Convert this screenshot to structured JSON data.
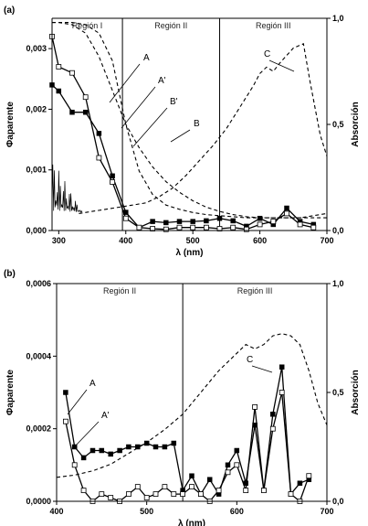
{
  "chart_data": [
    {
      "panel": "(a)",
      "type": "line",
      "xlabel": "λ (nm)",
      "ylabel_left": "Φaparente",
      "ylabel_right": "Absorción",
      "xlim": [
        290,
        700
      ],
      "ylim_left": [
        0,
        0.0035
      ],
      "ylim_right": [
        0,
        1.0
      ],
      "xticks": [
        {
          "v": 300,
          "label": "300"
        },
        {
          "v": 400,
          "label": "400"
        },
        {
          "v": 500,
          "label": "500"
        },
        {
          "v": 600,
          "label": "600"
        },
        {
          "v": 700,
          "label": "700"
        }
      ],
      "yticks_left": [
        {
          "v": 0,
          "label": "0,000"
        },
        {
          "v": 0.001,
          "label": "0,001"
        },
        {
          "v": 0.002,
          "label": "0,002"
        },
        {
          "v": 0.003,
          "label": "0,003"
        }
      ],
      "yticks_right": [
        {
          "v": 0,
          "label": "0,0"
        },
        {
          "v": 0.5,
          "label": "0,5"
        },
        {
          "v": 1.0,
          "label": "1,0"
        }
      ],
      "regions": [
        {
          "label": "Región I",
          "from": 290,
          "to": 395
        },
        {
          "label": "Región II",
          "from": 395,
          "to": 540
        },
        {
          "label": "Región III",
          "from": 540,
          "to": 700
        }
      ],
      "series": [
        {
          "name": "A",
          "axis": "left",
          "marker": "filled-square",
          "style": "solid",
          "x": [
            290,
            300,
            320,
            340,
            360,
            380,
            400,
            420,
            440,
            460,
            480,
            500,
            520,
            540,
            560,
            580,
            600,
            620,
            640,
            660,
            680
          ],
          "y": [
            0.0024,
            0.0023,
            0.00195,
            0.00195,
            0.0016,
            0.0009,
            0.0003,
            5e-05,
            0.00015,
            0.00013,
            0.00015,
            0.00015,
            0.00016,
            0.0002,
            0.00016,
            7e-05,
            0.0002,
            0.0001,
            0.00037,
            0.00015,
            0.0001
          ]
        },
        {
          "name": "A'",
          "axis": "left",
          "marker": "open-square",
          "style": "solid",
          "x": [
            290,
            300,
            320,
            340,
            360,
            380,
            400,
            420,
            440,
            460,
            480,
            500,
            520,
            540,
            560,
            580,
            600,
            620,
            640,
            660,
            680
          ],
          "y": [
            0.0032,
            0.0027,
            0.0026,
            0.0022,
            0.0012,
            0.0008,
            0.0002,
            5e-05,
            3e-05,
            2e-05,
            5e-05,
            5e-05,
            5e-05,
            3e-05,
            5e-05,
            2e-05,
            0.0001,
            0.00015,
            0.00028,
            0.0001,
            5e-05
          ]
        },
        {
          "name": "B",
          "axis": "right",
          "style": "dashed",
          "x": [
            290,
            300,
            320,
            340,
            360,
            380,
            400,
            420,
            440,
            460,
            480,
            500,
            520,
            540,
            560,
            580,
            600,
            620,
            640,
            660,
            680,
            700
          ],
          "y": [
            0.98,
            0.98,
            0.97,
            0.93,
            0.82,
            0.66,
            0.5,
            0.39,
            0.3,
            0.23,
            0.18,
            0.14,
            0.11,
            0.09,
            0.075,
            0.065,
            0.06,
            0.06,
            0.06,
            0.06,
            0.07,
            0.08
          ]
        },
        {
          "name": "B'",
          "axis": "right",
          "style": "dashed",
          "x": [
            290,
            300,
            320,
            340,
            360,
            380,
            400,
            420,
            440,
            460,
            480,
            500,
            520,
            540,
            560,
            580,
            600,
            620,
            640,
            660,
            680,
            700
          ],
          "y": [
            0.98,
            0.98,
            0.98,
            0.97,
            0.93,
            0.8,
            0.5,
            0.28,
            0.17,
            0.12,
            0.1,
            0.085,
            0.075,
            0.07,
            0.065,
            0.06,
            0.06,
            0.06,
            0.06,
            0.06,
            0.06,
            0.06
          ]
        },
        {
          "name": "C",
          "axis": "right",
          "style": "dashed",
          "x": [
            330,
            350,
            370,
            390,
            410,
            430,
            450,
            470,
            490,
            510,
            530,
            550,
            570,
            590,
            600,
            610,
            620,
            630,
            650,
            665,
            675,
            690,
            700
          ],
          "y": [
            0.08,
            0.09,
            0.1,
            0.11,
            0.12,
            0.13,
            0.16,
            0.2,
            0.26,
            0.33,
            0.4,
            0.48,
            0.58,
            0.68,
            0.74,
            0.77,
            0.75,
            0.79,
            0.86,
            0.88,
            0.7,
            0.45,
            0.35
          ]
        }
      ],
      "noise": {
        "x_from": 290,
        "x_to": 335,
        "y_max": 0.0009
      },
      "labels": [
        {
          "text": "A",
          "for": "A"
        },
        {
          "text": "A'",
          "for": "A'"
        },
        {
          "text": "B'",
          "for": "B'"
        },
        {
          "text": "B",
          "for": "B"
        },
        {
          "text": "C",
          "for": "C"
        }
      ]
    },
    {
      "panel": "(b)",
      "type": "line",
      "xlabel": "λ (nm)",
      "ylabel_left": "Φaparente",
      "ylabel_right": "Absorción",
      "xlim": [
        400,
        700
      ],
      "ylim_left": [
        0,
        0.0006
      ],
      "ylim_right": [
        0,
        1.0
      ],
      "xticks": [
        {
          "v": 400,
          "label": "400"
        },
        {
          "v": 500,
          "label": "500"
        },
        {
          "v": 600,
          "label": "600"
        },
        {
          "v": 700,
          "label": "700"
        }
      ],
      "yticks_left": [
        {
          "v": 0,
          "label": "0,0000"
        },
        {
          "v": 0.0002,
          "label": "0,0002"
        },
        {
          "v": 0.0004,
          "label": "0,0004"
        },
        {
          "v": 0.0006,
          "label": "0,0006"
        }
      ],
      "yticks_right": [
        {
          "v": 0,
          "label": "0,0"
        },
        {
          "v": 0.5,
          "label": "0,5"
        },
        {
          "v": 1.0,
          "label": "1,0"
        }
      ],
      "regions": [
        {
          "label": "Región II",
          "from": 400,
          "to": 540
        },
        {
          "label": "Región III",
          "from": 540,
          "to": 700
        }
      ],
      "series": [
        {
          "name": "A",
          "axis": "left",
          "marker": "filled-square",
          "style": "solid",
          "x": [
            410,
            420,
            430,
            440,
            450,
            460,
            470,
            480,
            490,
            500,
            510,
            520,
            530,
            540,
            550,
            560,
            570,
            580,
            590,
            600,
            610,
            620,
            630,
            640,
            650,
            660,
            670,
            680
          ],
          "y": [
            0.0003,
            0.00015,
            0.00012,
            0.00014,
            0.00014,
            0.00013,
            0.00014,
            0.00015,
            0.00015,
            0.00016,
            0.00015,
            0.00015,
            0.00016,
            3e-05,
            7e-05,
            2e-05,
            6e-05,
            2e-05,
            0.0001,
            0.00014,
            5e-05,
            0.00021,
            3e-05,
            0.00024,
            0.00037,
            2e-05,
            5e-05,
            6e-05
          ]
        },
        {
          "name": "A'",
          "axis": "left",
          "marker": "open-square",
          "style": "solid",
          "x": [
            410,
            420,
            430,
            440,
            450,
            460,
            470,
            480,
            490,
            500,
            510,
            520,
            530,
            540,
            550,
            560,
            570,
            580,
            590,
            600,
            610,
            620,
            630,
            640,
            650,
            660,
            670,
            680
          ],
          "y": [
            0.00022,
            0.0001,
            3e-05,
            0.0,
            2e-05,
            1e-05,
            0.0,
            2e-05,
            4e-05,
            1e-05,
            2e-05,
            4e-05,
            2e-05,
            2e-05,
            4e-05,
            2e-05,
            0.0,
            3e-05,
            8e-05,
            0.0001,
            3e-05,
            0.00026,
            3e-05,
            0.0002,
            0.0003,
            2e-05,
            0.0,
            7e-05
          ]
        },
        {
          "name": "C",
          "axis": "right",
          "style": "dashed",
          "x": [
            400,
            420,
            440,
            460,
            480,
            500,
            520,
            540,
            560,
            580,
            600,
            610,
            620,
            630,
            640,
            650,
            660,
            670,
            680,
            690,
            700
          ],
          "y": [
            0.11,
            0.12,
            0.14,
            0.17,
            0.22,
            0.27,
            0.33,
            0.4,
            0.5,
            0.6,
            0.68,
            0.72,
            0.7,
            0.72,
            0.76,
            0.77,
            0.76,
            0.72,
            0.6,
            0.45,
            0.35
          ]
        }
      ],
      "labels": [
        {
          "text": "A",
          "for": "A"
        },
        {
          "text": "A'",
          "for": "A'"
        },
        {
          "text": "C",
          "for": "C"
        }
      ]
    }
  ]
}
